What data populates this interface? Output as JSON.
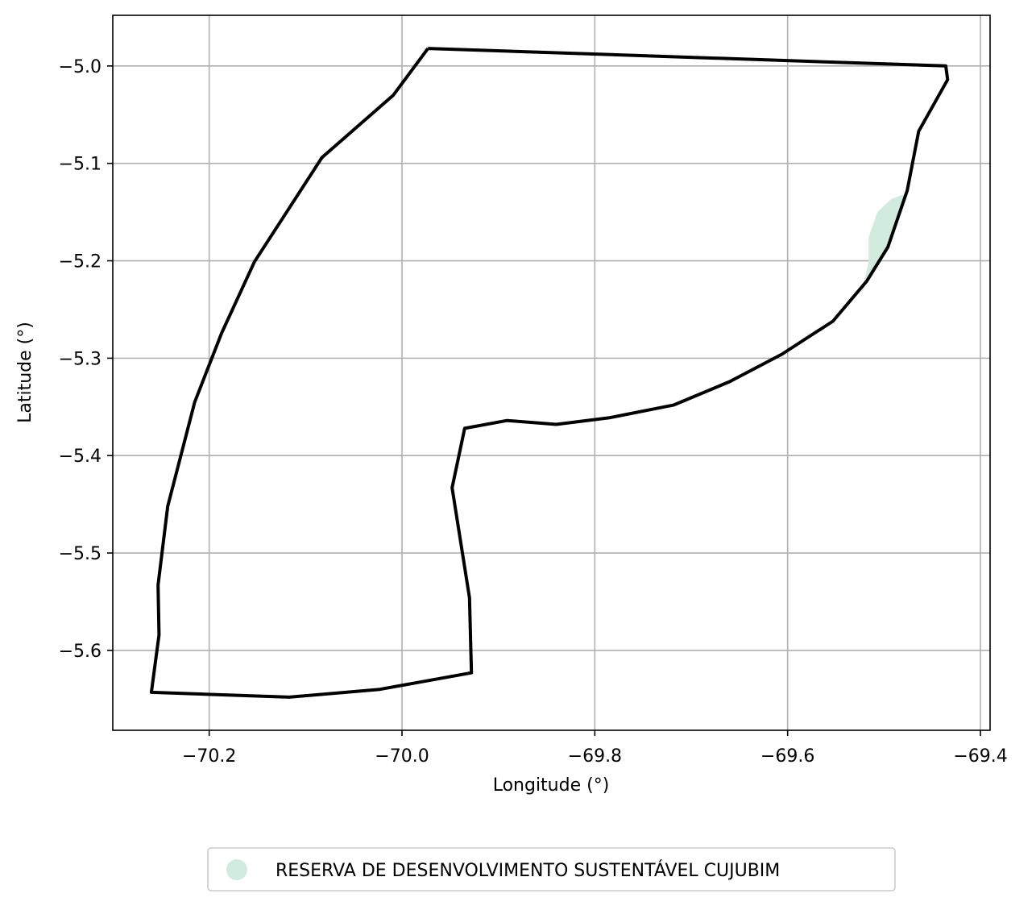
{
  "chart_data": {
    "type": "map",
    "title": "",
    "xlabel": "Longitude (°)",
    "ylabel": "Latitude (°)",
    "xlim": [
      -70.3,
      -69.39
    ],
    "ylim": [
      -5.682,
      -4.948
    ],
    "grid": true,
    "x_ticks": [
      -70.2,
      -70.0,
      -69.8,
      -69.6,
      -69.4
    ],
    "y_ticks": [
      -5.0,
      -5.1,
      -5.2,
      -5.3,
      -5.4,
      -5.5,
      -5.6
    ],
    "x_tick_labels": [
      "−70.2",
      "−70.0",
      "−69.8",
      "−69.6",
      "−69.4"
    ],
    "y_tick_labels": [
      "−5.0",
      "−5.1",
      "−5.2",
      "−5.3",
      "−5.4",
      "−5.5",
      "−5.6"
    ],
    "boundary": {
      "color": "#000000",
      "points": [
        [
          -69.973,
          -4.982
        ],
        [
          -69.436,
          -5.0
        ],
        [
          -69.434,
          -5.014
        ],
        [
          -69.464,
          -5.067
        ],
        [
          -69.476,
          -5.128
        ],
        [
          -69.496,
          -5.186
        ],
        [
          -69.518,
          -5.221
        ],
        [
          -69.553,
          -5.262
        ],
        [
          -69.606,
          -5.296
        ],
        [
          -69.66,
          -5.324
        ],
        [
          -69.718,
          -5.348
        ],
        [
          -69.784,
          -5.361
        ],
        [
          -69.84,
          -5.368
        ],
        [
          -69.891,
          -5.364
        ],
        [
          -69.935,
          -5.372
        ],
        [
          -69.948,
          -5.433
        ],
        [
          -69.93,
          -5.546
        ],
        [
          -69.928,
          -5.623
        ],
        [
          -70.023,
          -5.64
        ],
        [
          -70.117,
          -5.648
        ],
        [
          -70.26,
          -5.643
        ],
        [
          -70.252,
          -5.584
        ],
        [
          -70.253,
          -5.533
        ],
        [
          -70.243,
          -5.452
        ],
        [
          -70.215,
          -5.345
        ],
        [
          -70.187,
          -5.274
        ],
        [
          -70.153,
          -5.201
        ],
        [
          -70.083,
          -5.094
        ],
        [
          -70.009,
          -5.03
        ],
        [
          -69.973,
          -4.982
        ]
      ]
    },
    "areas": [
      {
        "name": "RESERVA DE DESENVOLVIMENTO SUSTENTÁVEL CUJUBIM",
        "color": "#d1ebdf",
        "points": [
          [
            -69.478,
            -5.131
          ],
          [
            -69.493,
            -5.137
          ],
          [
            -69.507,
            -5.15
          ],
          [
            -69.516,
            -5.176
          ],
          [
            -69.516,
            -5.201
          ],
          [
            -69.524,
            -5.237
          ],
          [
            -69.518,
            -5.221
          ],
          [
            -69.496,
            -5.186
          ],
          [
            -69.478,
            -5.131
          ]
        ]
      }
    ],
    "legend": {
      "placement": "bottom-center",
      "entries": [
        "RESERVA DE DESENVOLVIMENTO SUSTENTÁVEL CUJUBIM"
      ]
    }
  }
}
